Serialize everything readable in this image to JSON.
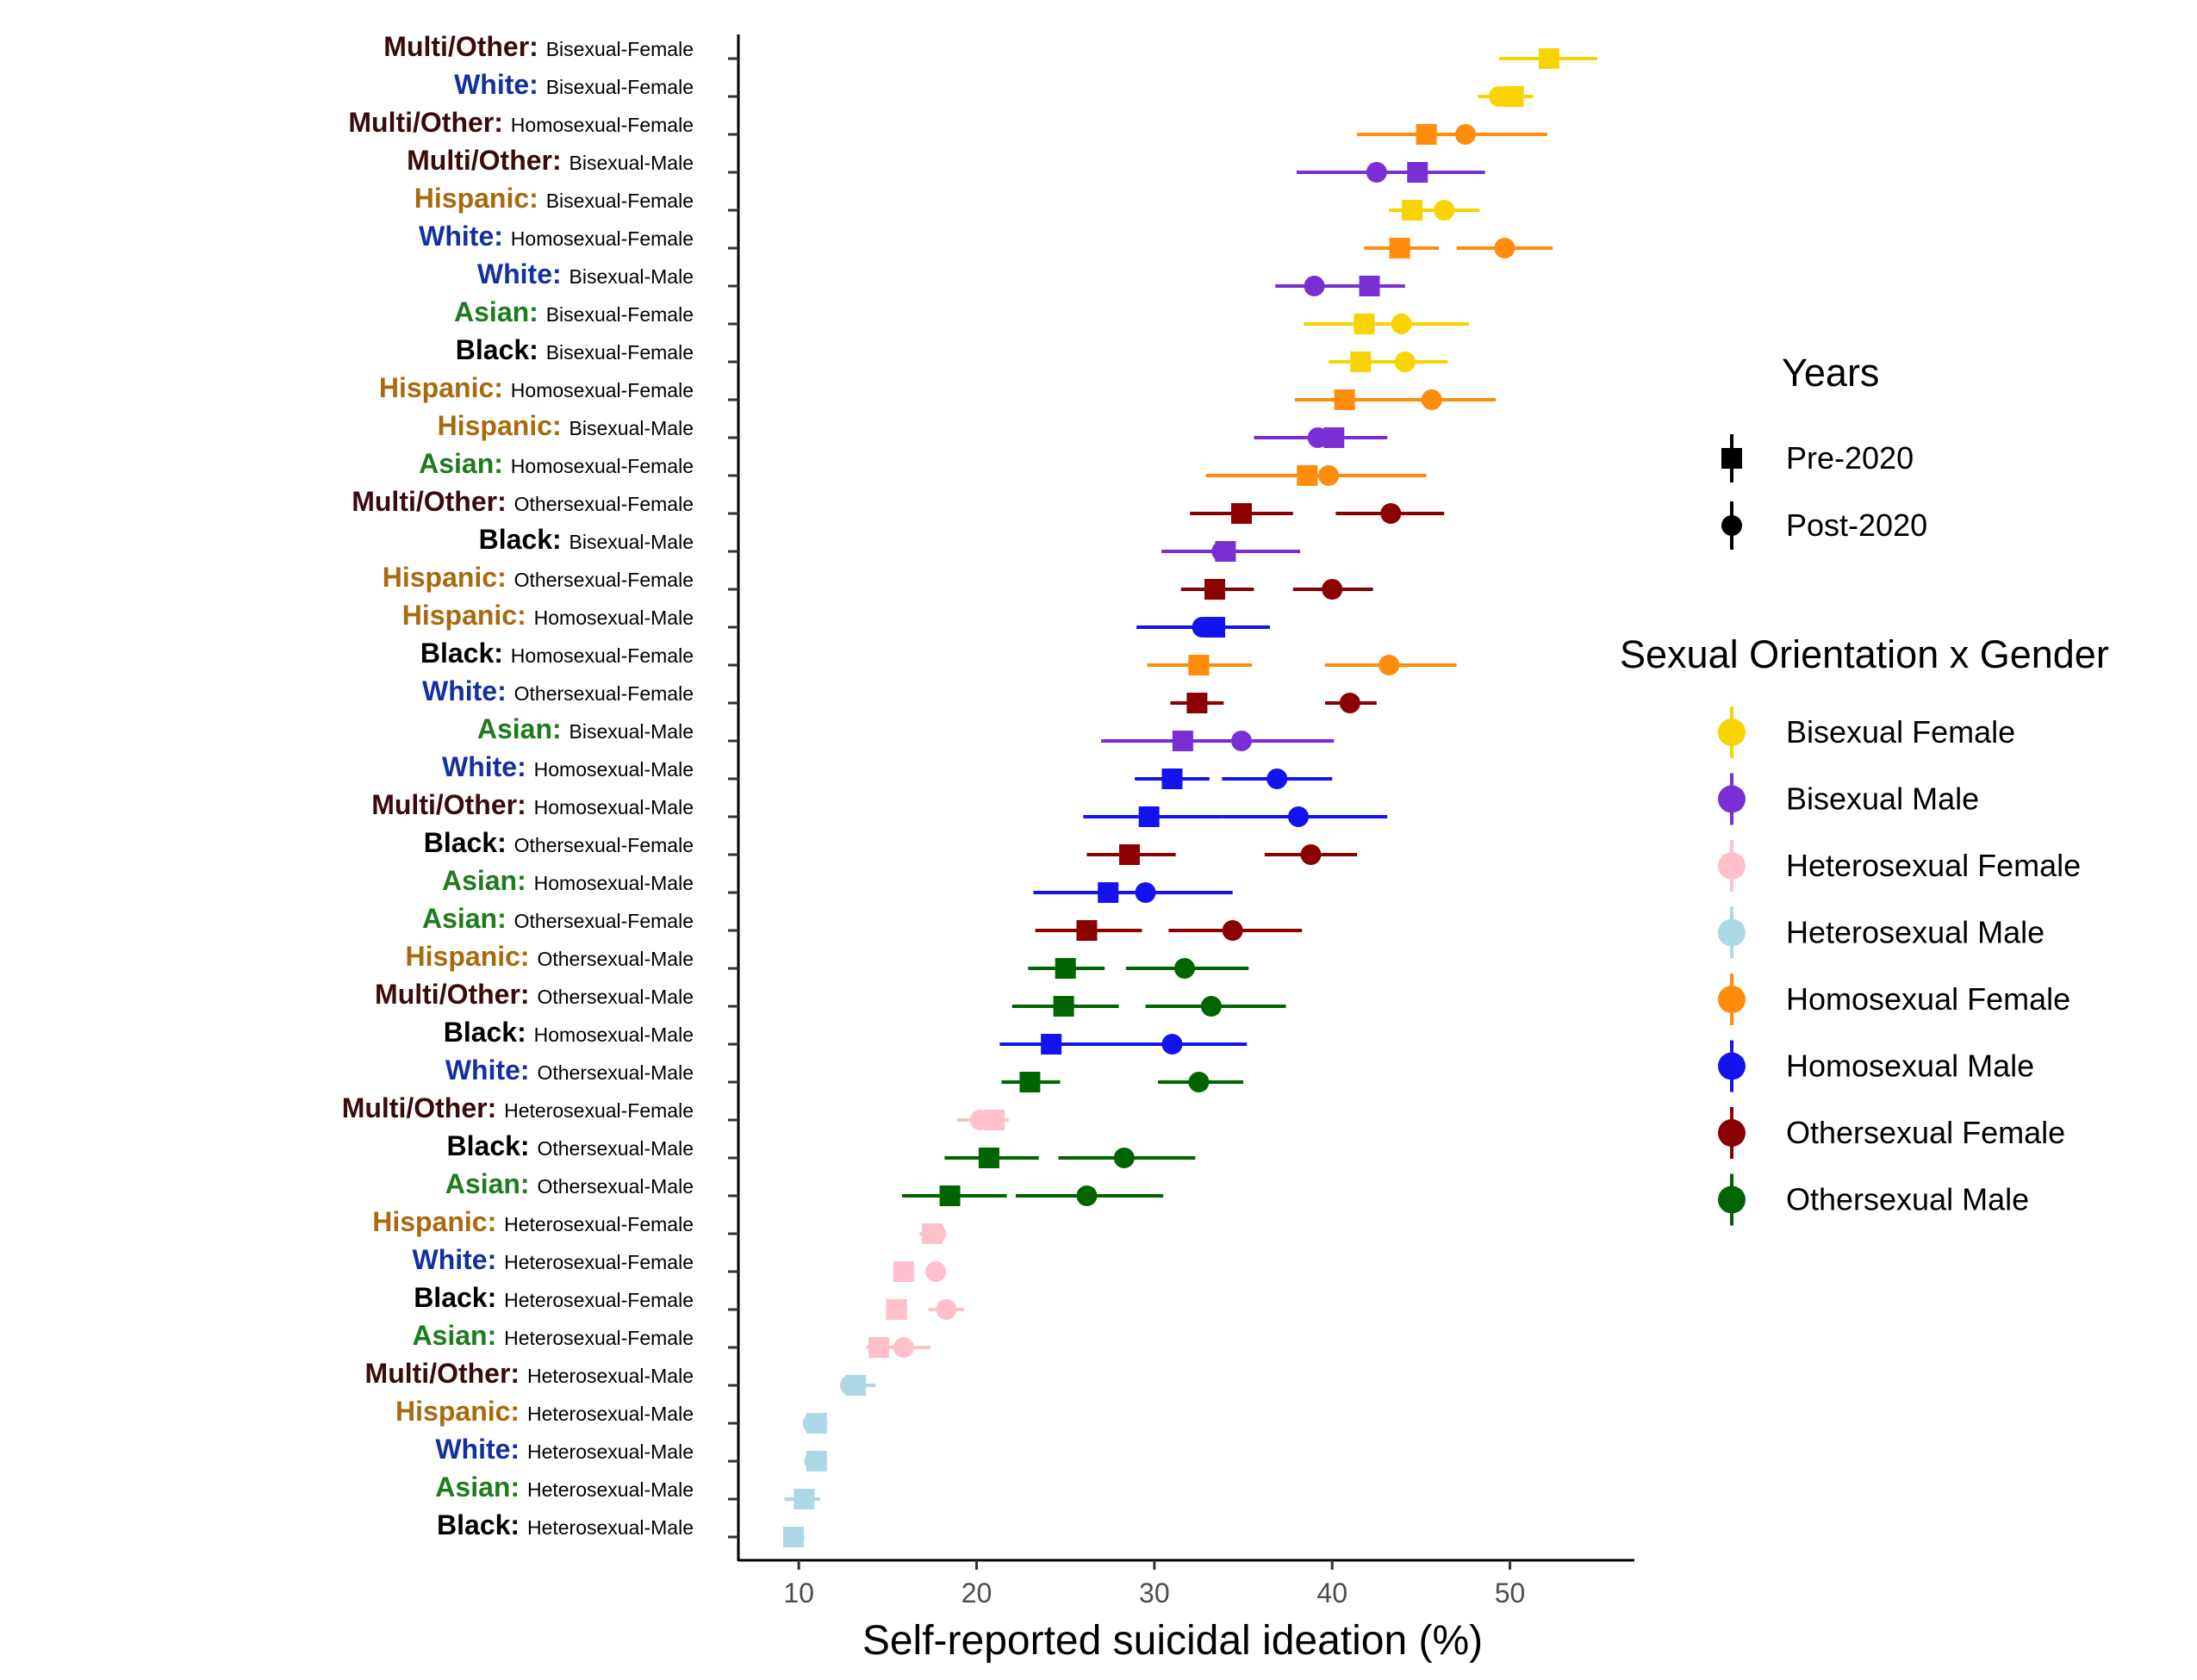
{
  "chart_data": {
    "type": "dot-range",
    "xlabel": "Self-reported suicidal ideation (%)",
    "xlim": [
      6.6,
      57.0
    ],
    "xticks": [
      10,
      20,
      30,
      40,
      50
    ],
    "race_colors": {
      "Multi/Other:": "#3b0a0a",
      "White:": "#13319c",
      "Hispanic:": "#a86a0c",
      "Asian:": "#1e7b1e",
      "Black:": "#000000"
    },
    "series_colors": {
      "Bisexual-Female": "#f7d400",
      "Bisexual-Male": "#7a2fd2",
      "Heterosexual-Female": "#ffc0cb",
      "Heterosexual-Male": "#add8e6",
      "Homosexual-Female": "#ff8c0a",
      "Homosexual-Male": "#1313f0",
      "Othersexual-Female": "#8b0000",
      "Othersexual-Male": "#006400"
    },
    "rows": [
      {
        "race": "Multi/Other:",
        "group": "Bisexual-Female",
        "pre": 52.2,
        "pre_ci": [
          49.4,
          54.9
        ],
        "post": 52.2,
        "post_ci": [
          49.4,
          54.9
        ]
      },
      {
        "race": "White:",
        "group": "Bisexual-Female",
        "pre": 50.2,
        "pre_ci": [
          48.2,
          51.3
        ],
        "post": 49.4,
        "post_ci": [
          48.2,
          51.3
        ]
      },
      {
        "race": "Multi/Other:",
        "group": "Homosexual-Female",
        "pre": 45.3,
        "pre_ci": [
          41.4,
          49.0
        ],
        "post": 47.5,
        "post_ci": [
          44.0,
          52.1
        ]
      },
      {
        "race": "Multi/Other:",
        "group": "Bisexual-Male",
        "pre": 44.8,
        "pre_ci": [
          41.0,
          48.6
        ],
        "post": 42.5,
        "post_ci": [
          38.0,
          46.5
        ]
      },
      {
        "race": "Hispanic:",
        "group": "Bisexual-Female",
        "pre": 44.5,
        "pre_ci": [
          43.2,
          45.8
        ],
        "post": 46.3,
        "post_ci": [
          44.5,
          48.3
        ]
      },
      {
        "race": "White:",
        "group": "Homosexual-Female",
        "pre": 43.8,
        "pre_ci": [
          41.8,
          46.0
        ],
        "post": 49.7,
        "post_ci": [
          47.0,
          52.4
        ]
      },
      {
        "race": "White:",
        "group": "Bisexual-Male",
        "pre": 42.1,
        "pre_ci": [
          39.5,
          44.1
        ],
        "post": 39.0,
        "post_ci": [
          36.8,
          41.3
        ]
      },
      {
        "race": "Asian:",
        "group": "Bisexual-Female",
        "pre": 41.8,
        "pre_ci": [
          38.4,
          44.6
        ],
        "post": 43.9,
        "post_ci": [
          40.3,
          47.7
        ]
      },
      {
        "race": "Black:",
        "group": "Bisexual-Female",
        "pre": 41.6,
        "pre_ci": [
          39.8,
          43.2
        ],
        "post": 44.1,
        "post_ci": [
          41.5,
          46.5
        ]
      },
      {
        "race": "Hispanic:",
        "group": "Homosexual-Female",
        "pre": 40.7,
        "pre_ci": [
          37.9,
          43.3
        ],
        "post": 45.6,
        "post_ci": [
          41.8,
          49.2
        ]
      },
      {
        "race": "Hispanic:",
        "group": "Bisexual-Male",
        "pre": 40.1,
        "pre_ci": [
          37.3,
          43.1
        ],
        "post": 39.2,
        "post_ci": [
          35.6,
          42.2
        ]
      },
      {
        "race": "Asian:",
        "group": "Homosexual-Female",
        "pre": 38.6,
        "pre_ci": [
          32.9,
          41.5
        ],
        "post": 39.8,
        "post_ci": [
          35.4,
          45.3
        ]
      },
      {
        "race": "Multi/Other:",
        "group": "Othersexual-Female",
        "pre": 34.9,
        "pre_ci": [
          32.0,
          37.8
        ],
        "post": 43.3,
        "post_ci": [
          40.2,
          46.3
        ]
      },
      {
        "race": "Black:",
        "group": "Bisexual-Male",
        "pre": 34.0,
        "pre_ci": [
          30.4,
          38.2
        ],
        "post": 33.8,
        "post_ci": [
          30.4,
          38.2
        ]
      },
      {
        "race": "Hispanic:",
        "group": "Othersexual-Female",
        "pre": 33.4,
        "pre_ci": [
          31.5,
          35.6
        ],
        "post": 40.0,
        "post_ci": [
          37.8,
          42.3
        ]
      },
      {
        "race": "Hispanic:",
        "group": "Homosexual-Male",
        "pre": 33.4,
        "pre_ci": [
          29.0,
          36.5
        ],
        "post": 32.7,
        "post_ci": [
          29.0,
          36.5
        ]
      },
      {
        "race": "Black:",
        "group": "Homosexual-Female",
        "pre": 32.5,
        "pre_ci": [
          29.6,
          35.5
        ],
        "post": 43.2,
        "post_ci": [
          39.6,
          47.0
        ]
      },
      {
        "race": "White:",
        "group": "Othersexual-Female",
        "pre": 32.4,
        "pre_ci": [
          30.9,
          33.9
        ],
        "post": 41.0,
        "post_ci": [
          39.6,
          42.5
        ]
      },
      {
        "race": "Asian:",
        "group": "Bisexual-Male",
        "pre": 31.6,
        "pre_ci": [
          27.0,
          35.0
        ],
        "post": 34.9,
        "post_ci": [
          31.0,
          40.1
        ]
      },
      {
        "race": "White:",
        "group": "Homosexual-Male",
        "pre": 31.0,
        "pre_ci": [
          28.9,
          33.1
        ],
        "post": 36.9,
        "post_ci": [
          33.8,
          40.0
        ]
      },
      {
        "race": "Multi/Other:",
        "group": "Homosexual-Male",
        "pre": 29.7,
        "pre_ci": [
          26.0,
          33.8
        ],
        "post": 38.1,
        "post_ci": [
          33.8,
          43.1
        ]
      },
      {
        "race": "Black:",
        "group": "Othersexual-Female",
        "pre": 28.6,
        "pre_ci": [
          26.2,
          31.2
        ],
        "post": 38.8,
        "post_ci": [
          36.2,
          41.4
        ]
      },
      {
        "race": "Asian:",
        "group": "Homosexual-Male",
        "pre": 27.4,
        "pre_ci": [
          23.2,
          29.8
        ],
        "post": 29.5,
        "post_ci": [
          25.0,
          34.4
        ]
      },
      {
        "race": "Asian:",
        "group": "Othersexual-Female",
        "pre": 26.2,
        "pre_ci": [
          23.3,
          29.3
        ],
        "post": 34.4,
        "post_ci": [
          30.8,
          38.3
        ]
      },
      {
        "race": "Hispanic:",
        "group": "Othersexual-Male",
        "pre": 25.0,
        "pre_ci": [
          22.9,
          27.2
        ],
        "post": 31.7,
        "post_ci": [
          28.4,
          35.3
        ]
      },
      {
        "race": "Multi/Other:",
        "group": "Othersexual-Male",
        "pre": 24.9,
        "pre_ci": [
          22.0,
          28.0
        ],
        "post": 33.2,
        "post_ci": [
          29.5,
          37.4
        ]
      },
      {
        "race": "Black:",
        "group": "Homosexual-Male",
        "pre": 24.2,
        "pre_ci": [
          21.3,
          27.3
        ],
        "post": 31.0,
        "post_ci": [
          27.0,
          35.2
        ]
      },
      {
        "race": "White:",
        "group": "Othersexual-Male",
        "pre": 23.0,
        "pre_ci": [
          21.4,
          24.7
        ],
        "post": 32.5,
        "post_ci": [
          30.2,
          35.0
        ]
      },
      {
        "race": "Multi/Other:",
        "group": "Heterosexual-Female",
        "pre": 21.0,
        "pre_ci": [
          18.9,
          21.8
        ],
        "post": 20.2,
        "post_ci": [
          18.9,
          21.8
        ]
      },
      {
        "race": "Black:",
        "group": "Othersexual-Male",
        "pre": 20.7,
        "pre_ci": [
          18.2,
          23.5
        ],
        "post": 28.3,
        "post_ci": [
          24.6,
          32.3
        ]
      },
      {
        "race": "Asian:",
        "group": "Othersexual-Male",
        "pre": 18.5,
        "pre_ci": [
          15.8,
          21.7
        ],
        "post": 26.2,
        "post_ci": [
          22.2,
          30.5
        ]
      },
      {
        "race": "Hispanic:",
        "group": "Heterosexual-Female",
        "pre": 17.5,
        "pre_ci": [
          16.8,
          18.3
        ],
        "post": 17.7,
        "post_ci": [
          16.8,
          18.3
        ]
      },
      {
        "race": "White:",
        "group": "Heterosexual-Female",
        "pre": 15.9,
        "pre_ci": [
          15.6,
          16.2
        ],
        "post": 17.7,
        "post_ci": [
          17.3,
          18.1
        ]
      },
      {
        "race": "Black:",
        "group": "Heterosexual-Female",
        "pre": 15.5,
        "pre_ci": [
          15.0,
          16.1
        ],
        "post": 18.3,
        "post_ci": [
          17.3,
          19.3
        ]
      },
      {
        "race": "Asian:",
        "group": "Heterosexual-Female",
        "pre": 14.5,
        "pre_ci": [
          13.8,
          15.3
        ],
        "post": 15.9,
        "post_ci": [
          14.5,
          17.4
        ]
      },
      {
        "race": "Multi/Other:",
        "group": "Heterosexual-Male",
        "pre": 13.2,
        "pre_ci": [
          12.4,
          14.3
        ],
        "post": 12.9,
        "post_ci": [
          12.4,
          14.3
        ]
      },
      {
        "race": "Hispanic:",
        "group": "Heterosexual-Male",
        "pre": 11.0,
        "pre_ci": [
          10.5,
          11.6
        ],
        "post": 10.8,
        "post_ci": [
          10.5,
          11.6
        ]
      },
      {
        "race": "White:",
        "group": "Heterosexual-Male",
        "pre": 11.0,
        "pre_ci": [
          10.6,
          11.5
        ],
        "post": 10.9,
        "post_ci": [
          10.6,
          11.5
        ]
      },
      {
        "race": "Asian:",
        "group": "Heterosexual-Male",
        "pre": 10.3,
        "pre_ci": [
          9.2,
          11.2
        ],
        "post": 10.3,
        "post_ci": [
          9.2,
          11.2
        ]
      },
      {
        "race": "Black:",
        "group": "Heterosexual-Male",
        "pre": 9.7,
        "pre_ci": [
          9.3,
          10.3
        ],
        "post": 9.7,
        "post_ci": [
          9.3,
          10.3
        ]
      }
    ],
    "legend": {
      "years_title": "Years",
      "years": [
        {
          "label": "Pre-2020",
          "shape": "square"
        },
        {
          "label": "Post-2020",
          "shape": "circle"
        }
      ],
      "groups_title": "Sexual Orientation x Gender",
      "groups": [
        {
          "label": "Bisexual Female",
          "key": "Bisexual-Female"
        },
        {
          "label": "Bisexual Male",
          "key": "Bisexual-Male"
        },
        {
          "label": "Heterosexual Female",
          "key": "Heterosexual-Female"
        },
        {
          "label": "Heterosexual Male",
          "key": "Heterosexual-Male"
        },
        {
          "label": "Homosexual Female",
          "key": "Homosexual-Female"
        },
        {
          "label": "Homosexual Male",
          "key": "Homosexual-Male"
        },
        {
          "label": "Othersexual Female",
          "key": "Othersexual-Female"
        },
        {
          "label": "Othersexual Male",
          "key": "Othersexual-Male"
        }
      ]
    }
  }
}
